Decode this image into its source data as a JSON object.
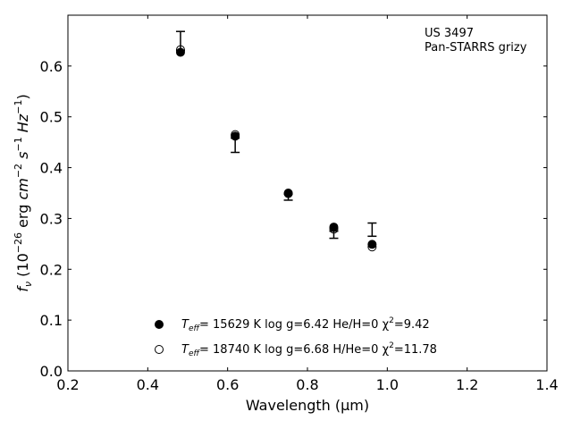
{
  "chart_data": {
    "type": "scatter",
    "xlabel": "Wavelength (μm)",
    "ylabel": "f_ν (10^-26 erg cm^-2 s^-1 Hz^-1)",
    "xlim": [
      0.2,
      1.4
    ],
    "ylim": [
      0.0,
      0.7
    ],
    "x_ticks": [
      0.2,
      0.4,
      0.6,
      0.8,
      1.0,
      1.2,
      1.4
    ],
    "y_ticks": [
      0.0,
      0.1,
      0.2,
      0.3,
      0.4,
      0.5,
      0.6
    ],
    "x_tick_labels": [
      "0.2",
      "0.4",
      "0.6",
      "0.8",
      "1.0",
      "1.2",
      "1.4"
    ],
    "y_tick_labels": [
      "0.0",
      "0.1",
      "0.2",
      "0.3",
      "0.4",
      "0.5",
      "0.6"
    ],
    "grid": false,
    "legend_position": "bottom-center",
    "annotation": {
      "object": "US 3497",
      "survey": "Pan-STARRS grizy"
    },
    "observed": {
      "x": [
        0.482,
        0.619,
        0.752,
        0.866,
        0.962
      ],
      "y": [
        0.649,
        0.444,
        0.342,
        0.268,
        0.278
      ],
      "yerr_low": [
        0.019,
        0.014,
        0.006,
        0.007,
        0.013
      ],
      "yerr_high": [
        0.019,
        0.014,
        0.006,
        0.007,
        0.013
      ]
    },
    "series": [
      {
        "name": "T_eff= 15629 K  log g=6.42  He/H=0  χ²=9.42",
        "teff_label": "T",
        "teff_sub": "eff",
        "rest": "= 15629 K  log g=6.42  He/H=0  χ",
        "chi_sup": "2",
        "chi_val": "=9.42",
        "marker": "filled-circle",
        "x": [
          0.482,
          0.619,
          0.752,
          0.866,
          0.962
        ],
        "y": [
          0.627,
          0.462,
          0.35,
          0.283,
          0.249
        ]
      },
      {
        "name": "T_eff= 18740 K  log g=6.68  H/He=0  χ²=11.78",
        "teff_label": "T",
        "teff_sub": "eff",
        "rest": "= 18740 K  log g=6.68  H/He=0  χ",
        "chi_sup": "2",
        "chi_val": "=11.78",
        "marker": "open-circle",
        "x": [
          0.482,
          0.619,
          0.752,
          0.866,
          0.962
        ],
        "y": [
          0.632,
          0.465,
          0.349,
          0.279,
          0.244
        ]
      }
    ],
    "colors": {
      "marker": "#000000",
      "axes": "#000000",
      "background": "#ffffff"
    }
  }
}
